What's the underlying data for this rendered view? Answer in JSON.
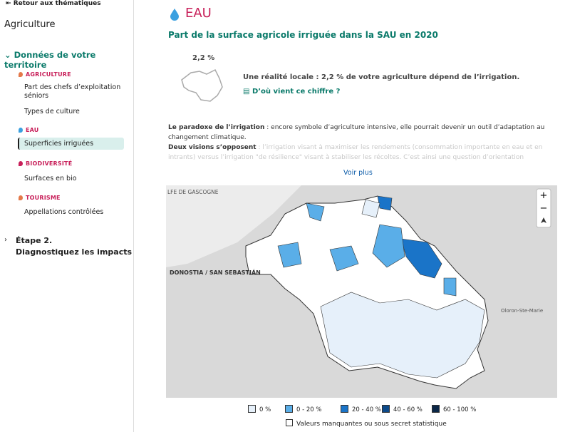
{
  "sidebar": {
    "back": "Retour aux thématiques",
    "title": "Agriculture",
    "section": "Données de votre territoire",
    "groups": [
      {
        "label": "AGRICULTURE",
        "color": "#e4794a",
        "items": [
          "Part des chefs d’exploitation séniors",
          "Types de culture"
        ]
      },
      {
        "label": "EAU",
        "color": "#3aa0e0",
        "items": [
          "Superficies irriguées"
        ]
      },
      {
        "label": "BIODIVERSITÉ",
        "color": "#c8205a",
        "items": [
          "Surfaces en bio"
        ]
      },
      {
        "label": "TOURISME",
        "color": "#e4794a",
        "items": [
          "Appellations contrôlées"
        ]
      }
    ],
    "step": "Étape 2.",
    "step_sub": "Diagnostiquez les impacts"
  },
  "main": {
    "heading": "EAU",
    "subtitle": "Part de la surface agricole irriguée dans la SAU en 2020",
    "stat": "2,2 %",
    "fact": "Une réalité locale : 2,2 % de votre agriculture dépend de l’irrigation.",
    "source_link": "D’où vient ce chiffre ?",
    "para1_lead": "Le paradoxe de l’irrigation",
    "para1": " : encore symbole d’agriculture intensive, elle pourrait devenir un outil d’adaptation au changement climatique.",
    "para2_lead": "Deux visions s’opposent",
    "para2": " : l’irrigation visant à maximiser les rendements (consommation importante en eau et en intrants) versus l’irrigation \"de résilience\" visant à stabiliser les récoltes. C’est ainsi une question d’orientation stratégique : est-ce [?]",
    "more": "Voir plus"
  },
  "map": {
    "labels": [
      "LFE DE GASCOGNE",
      "DONOSTIA / SAN SEBASTIÁN",
      "Oloron-Ste-Marie"
    ],
    "zoom_in": "+",
    "zoom_out": "−",
    "legend": [
      {
        "label": "0 %",
        "color": "#e6f0fa"
      },
      {
        "label": "0 - 20 %",
        "color": "#5aaee8"
      },
      {
        "label": "20 - 40 %",
        "color": "#1a74c8"
      },
      {
        "label": "40 - 60 %",
        "color": "#0d4a8a"
      },
      {
        "label": "60 - 100 %",
        "color": "#0b2747"
      }
    ],
    "missing": "Valeurs manquantes ou sous secret statistique"
  }
}
